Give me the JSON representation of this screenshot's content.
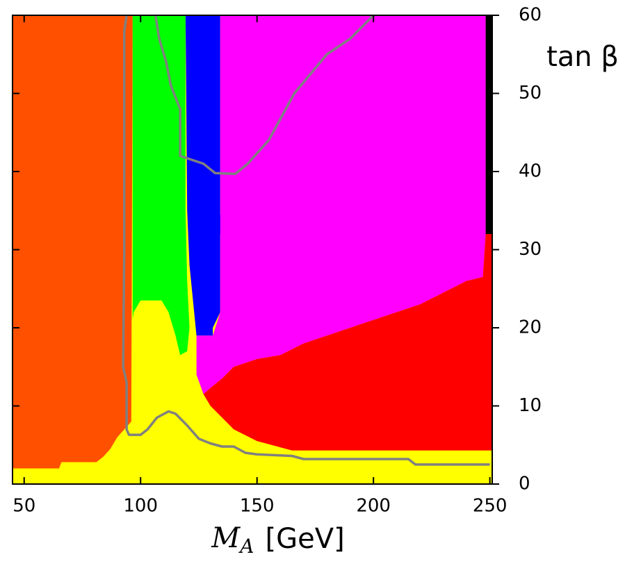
{
  "chart_data": {
    "type": "region",
    "xlabel": {
      "symbol": "M",
      "subscript": "A",
      "unit": "[GeV]"
    },
    "ylabel": "tan β",
    "xlim": [
      45,
      251
    ],
    "ylim": [
      0,
      60
    ],
    "xticks": [
      50,
      100,
      150,
      200,
      250
    ],
    "yticks": [
      0,
      10,
      20,
      30,
      40,
      50,
      60
    ],
    "regions": [
      {
        "color": "#ffff00",
        "x": [
          45,
          251,
          251,
          45
        ],
        "values": [
          0,
          0,
          60,
          60
        ]
      },
      {
        "color": "#ff5000",
        "x": [
          45,
          65,
          66,
          81,
          84,
          87,
          90,
          93,
          96,
          96.6,
          45
        ],
        "values": [
          2,
          2,
          2.8,
          2.8,
          3.5,
          4.5,
          6,
          7,
          8,
          60,
          60
        ]
      },
      {
        "color": "#00ff00",
        "x": [
          96.6,
          119.3,
          119.3,
          120,
          121,
          120,
          117,
          115,
          112,
          109,
          100,
          97,
          96.6
        ],
        "values": [
          60,
          60,
          35,
          26,
          20,
          17,
          16.5,
          19,
          22,
          23.5,
          23.5,
          22,
          21
        ]
      },
      {
        "color": "#0000ff",
        "x": [
          119.3,
          134.2,
          134.2,
          136.3,
          136.3,
          134.2,
          134.2,
          131,
          131,
          124,
          123,
          121,
          120
        ],
        "values": [
          60,
          60,
          34.5,
          34.5,
          32,
          32,
          22,
          20,
          19,
          19,
          22,
          28,
          35
        ]
      },
      {
        "color": "#ff00ff",
        "x": [
          134.2,
          248.2,
          248.2,
          247,
          240,
          230,
          220,
          210,
          200,
          190,
          180,
          170,
          160,
          150,
          140,
          135,
          130,
          127,
          124,
          124,
          131,
          134.2
        ],
        "values": [
          60,
          60,
          32,
          26.5,
          26,
          24.5,
          23,
          22,
          21,
          20,
          19,
          18,
          16.5,
          16,
          15,
          13.5,
          12.3,
          11.5,
          14,
          19,
          19,
          22
        ]
      },
      {
        "color": "#ff0000",
        "x": [
          127,
          130,
          135,
          140,
          150,
          160,
          170,
          180,
          190,
          200,
          210,
          220,
          230,
          240,
          247,
          248.2,
          251,
          251,
          165,
          150,
          140,
          135,
          130
        ],
        "values": [
          11.5,
          12.3,
          13.5,
          15,
          16,
          16.5,
          18,
          19,
          20,
          21,
          22,
          23,
          24.5,
          26,
          26.5,
          32,
          32,
          4.3,
          4.3,
          5.5,
          7,
          8.5,
          10
        ]
      },
      {
        "color": "#000000",
        "x": [
          248.2,
          251,
          251,
          248.2
        ],
        "values": [
          60,
          60,
          32,
          32
        ]
      }
    ],
    "lines": [
      {
        "color": "#808080",
        "x": [
          94,
          93,
          93,
          92.5,
          94,
          94,
          95,
          100,
          103,
          107,
          112,
          115,
          120,
          125,
          130,
          135,
          140,
          145,
          150,
          165,
          170,
          190,
          215,
          218,
          250
        ],
        "values": [
          60,
          58,
          30,
          15,
          13,
          7,
          6.3,
          6.3,
          7,
          8.5,
          9.3,
          9,
          7.5,
          5.8,
          5.2,
          4.8,
          4.8,
          4,
          3.8,
          3.6,
          3.2,
          3.2,
          3.2,
          2.5,
          2.5
        ]
      },
      {
        "color": "#808080",
        "x": [
          106.4,
          108,
          111,
          113,
          117,
          117,
          122,
          127,
          132,
          140.7,
          146,
          155,
          166,
          180,
          190,
          200
        ],
        "values": [
          60,
          57,
          54,
          51,
          48,
          42,
          41.5,
          41,
          39.8,
          39.7,
          41,
          44,
          50,
          55,
          57,
          60
        ]
      }
    ]
  }
}
